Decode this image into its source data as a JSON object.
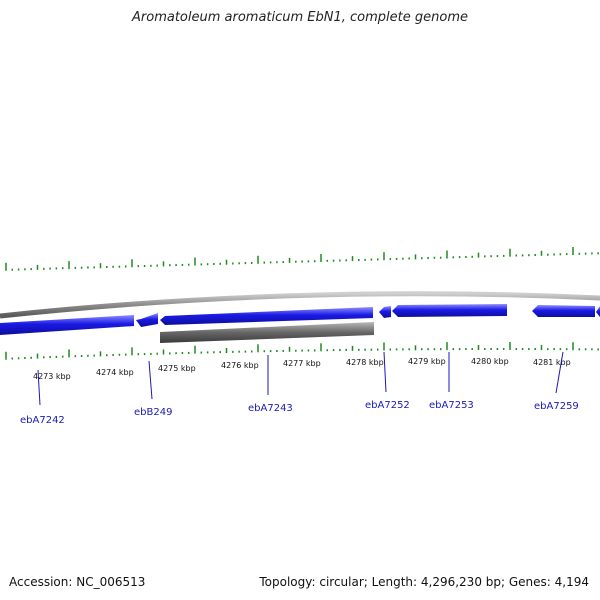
{
  "title": "Aromatoleum aromaticum EbN1, complete genome",
  "footer": {
    "accession": "Accession: NC_006513",
    "summary": "Topology: circular; Length: 4,296,230 bp; Genes: 4,194"
  },
  "colors": {
    "forward_gene": "#1a1ae6",
    "reverse_gene": "#666666",
    "backbone": "#8c8c8c",
    "tick": "#1f8a1f",
    "label_line": "#1a1ab5"
  },
  "kbp_labels": [
    "4273 kbp",
    "4274 kbp",
    "4275 kbp",
    "4276 kbp",
    "4277 kbp",
    "4278 kbp",
    "4279 kbp",
    "4280 kbp",
    "4281 kbp"
  ],
  "gene_labels": [
    "ebA7242",
    "ebB249",
    "ebA7243",
    "ebA7252",
    "ebA7253",
    "ebA7259"
  ]
}
